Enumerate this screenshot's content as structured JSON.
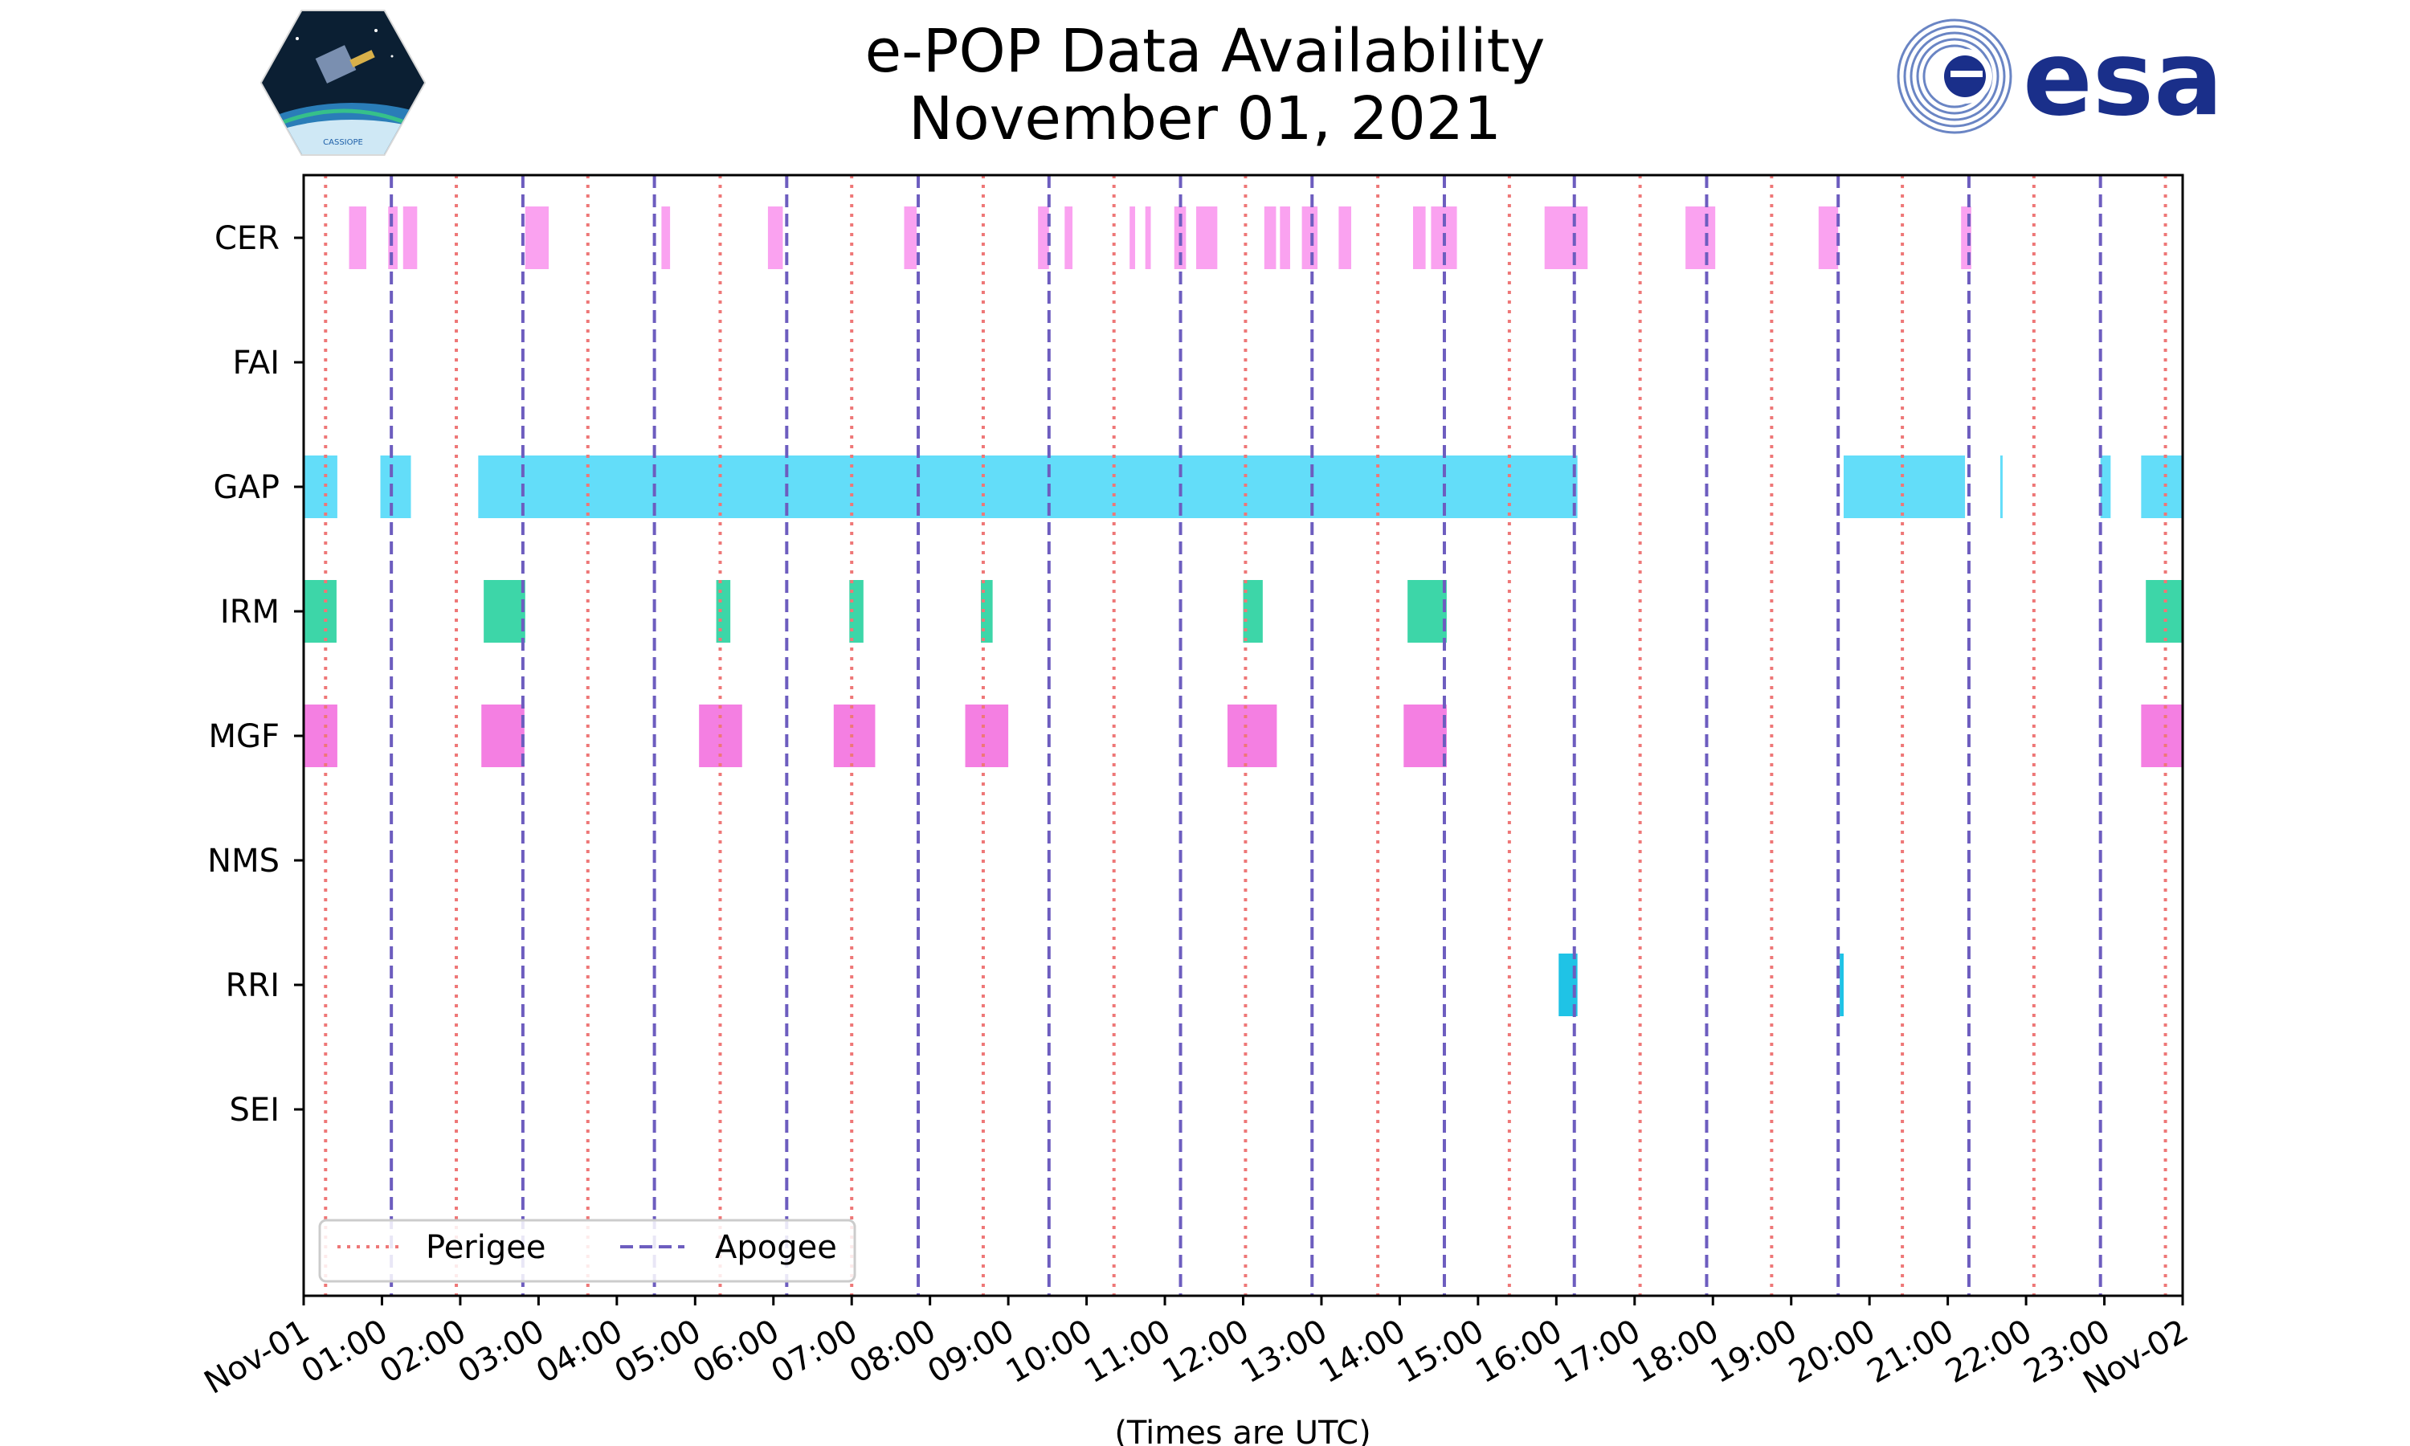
{
  "header": {
    "title_line1": "e-POP Data Availability",
    "title_line2": "November 01, 2021"
  },
  "logos": {
    "left": {
      "icon": "cassiope-mission-badge-icon",
      "text": "CASSIOPE"
    },
    "right": {
      "icon": "esa-logo-icon",
      "text": "esa"
    }
  },
  "colors": {
    "CER": "#faa2f0",
    "GAP": "#63ddf9",
    "IRM": "#3dd6a8",
    "MGF": "#f47fe2",
    "RRI": "#1fc3e6",
    "perigee": "#ee7777",
    "apogee": "#6d5dbf",
    "axis": "#000000"
  },
  "chart_data": {
    "type": "timeline",
    "title": "e-POP Data Availability November 01, 2021",
    "xlabel": "(Times are UTC)",
    "xlim": [
      0,
      24
    ],
    "x_units": "hours UTC",
    "x_ticks": [
      {
        "t": 0,
        "label": "Nov-01"
      },
      {
        "t": 1,
        "label": "01:00"
      },
      {
        "t": 2,
        "label": "02:00"
      },
      {
        "t": 3,
        "label": "03:00"
      },
      {
        "t": 4,
        "label": "04:00"
      },
      {
        "t": 5,
        "label": "05:00"
      },
      {
        "t": 6,
        "label": "06:00"
      },
      {
        "t": 7,
        "label": "07:00"
      },
      {
        "t": 8,
        "label": "08:00"
      },
      {
        "t": 9,
        "label": "09:00"
      },
      {
        "t": 10,
        "label": "10:00"
      },
      {
        "t": 11,
        "label": "11:00"
      },
      {
        "t": 12,
        "label": "12:00"
      },
      {
        "t": 13,
        "label": "13:00"
      },
      {
        "t": 14,
        "label": "14:00"
      },
      {
        "t": 15,
        "label": "15:00"
      },
      {
        "t": 16,
        "label": "16:00"
      },
      {
        "t": 17,
        "label": "17:00"
      },
      {
        "t": 18,
        "label": "18:00"
      },
      {
        "t": 19,
        "label": "19:00"
      },
      {
        "t": 20,
        "label": "20:00"
      },
      {
        "t": 21,
        "label": "21:00"
      },
      {
        "t": 22,
        "label": "22:00"
      },
      {
        "t": 23,
        "label": "23:00"
      },
      {
        "t": 24,
        "label": "Nov-02"
      }
    ],
    "instruments": [
      "CER",
      "FAI",
      "GAP",
      "IRM",
      "MGF",
      "NMS",
      "RRI",
      "SEI"
    ],
    "intervals": {
      "CER": [
        [
          0.58,
          0.8
        ],
        [
          1.08,
          1.2
        ],
        [
          1.27,
          1.45
        ],
        [
          2.83,
          3.13
        ],
        [
          4.57,
          4.68
        ],
        [
          5.93,
          6.12
        ],
        [
          7.67,
          7.83
        ],
        [
          9.38,
          9.52
        ],
        [
          9.72,
          9.82
        ],
        [
          10.55,
          10.62
        ],
        [
          10.75,
          10.82
        ],
        [
          11.12,
          11.27
        ],
        [
          11.4,
          11.67
        ],
        [
          12.27,
          12.42
        ],
        [
          12.47,
          12.6
        ],
        [
          12.75,
          12.95
        ],
        [
          13.22,
          13.38
        ],
        [
          14.17,
          14.33
        ],
        [
          14.4,
          14.73
        ],
        [
          15.85,
          16.4
        ],
        [
          17.65,
          18.03
        ],
        [
          19.35,
          19.6
        ],
        [
          21.17,
          21.3
        ]
      ],
      "FAI": [],
      "GAP": [
        [
          0,
          0.43
        ],
        [
          0.98,
          1.37
        ],
        [
          2.23,
          16.27
        ],
        [
          19.67,
          21.22
        ],
        [
          21.67,
          21.7
        ],
        [
          22.95,
          23.08
        ],
        [
          23.47,
          24
        ]
      ],
      "IRM": [
        [
          0,
          0.42
        ],
        [
          2.3,
          2.83
        ],
        [
          5.27,
          5.45
        ],
        [
          6.97,
          7.15
        ],
        [
          8.65,
          8.8
        ],
        [
          12.0,
          12.25
        ],
        [
          14.1,
          14.6
        ],
        [
          23.53,
          24
        ]
      ],
      "MGF": [
        [
          0,
          0.43
        ],
        [
          2.27,
          2.82
        ],
        [
          5.05,
          5.6
        ],
        [
          6.77,
          7.3
        ],
        [
          8.45,
          9.0
        ],
        [
          11.8,
          12.43
        ],
        [
          14.05,
          14.6
        ],
        [
          23.47,
          24
        ]
      ],
      "NMS": [],
      "RRI": [
        [
          16.03,
          16.27
        ],
        [
          19.62,
          19.67
        ]
      ],
      "SEI": []
    },
    "perigee_times": [
      0.28,
      1.95,
      3.63,
      5.32,
      7.0,
      8.68,
      10.35,
      12.03,
      13.72,
      15.4,
      17.07,
      18.75,
      20.42,
      22.1,
      23.78
    ],
    "apogee_times": [
      1.12,
      2.8,
      4.48,
      6.17,
      7.85,
      9.52,
      11.2,
      12.88,
      14.57,
      16.23,
      17.92,
      19.6,
      21.27,
      22.95
    ],
    "legend": [
      {
        "label": "Perigee",
        "style": "dotted"
      },
      {
        "label": "Apogee",
        "style": "dashed"
      }
    ],
    "legend_location": "lower-left",
    "grid": false
  }
}
